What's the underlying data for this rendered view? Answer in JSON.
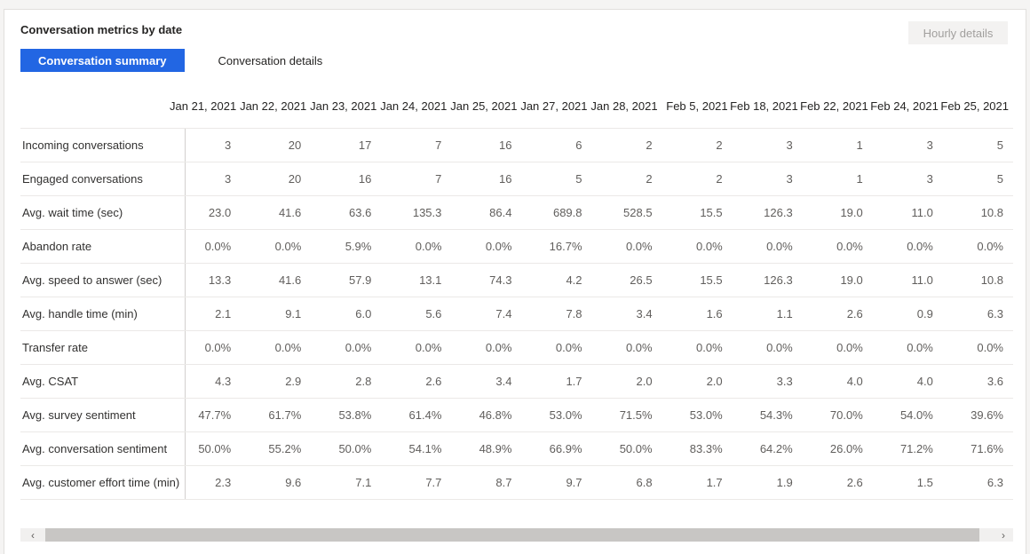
{
  "colors": {
    "accent": "#2266e3",
    "disabled_text": "#a19f9d",
    "thumb": "#c8c6c4"
  },
  "panel": {
    "title": "Conversation metrics by date",
    "hourly_details_label": "Hourly details",
    "tabs": [
      {
        "label": "Conversation summary",
        "selected": true
      },
      {
        "label": "Conversation details",
        "selected": false
      }
    ]
  },
  "table": {
    "columns": [
      "Jan 21, 2021",
      "Jan 22, 2021",
      "Jan 23, 2021",
      "Jan 24, 2021",
      "Jan 25, 2021",
      "Jan 27, 2021",
      "Jan 28, 2021",
      "Feb 5, 2021",
      "Feb 18, 2021",
      "Feb 22, 2021",
      "Feb 24, 2021",
      "Feb 25, 2021"
    ],
    "first_column_clipped": true,
    "rows": [
      {
        "label": "Incoming conversations",
        "values": [
          "3",
          "20",
          "17",
          "7",
          "16",
          "6",
          "2",
          "2",
          "3",
          "1",
          "3",
          "5"
        ]
      },
      {
        "label": "Engaged conversations",
        "values": [
          "3",
          "20",
          "16",
          "7",
          "16",
          "5",
          "2",
          "2",
          "3",
          "1",
          "3",
          "5"
        ]
      },
      {
        "label": "Avg. wait time (sec)",
        "values": [
          "23.0",
          "41.6",
          "63.6",
          "135.3",
          "86.4",
          "689.8",
          "528.5",
          "15.5",
          "126.3",
          "19.0",
          "11.0",
          "10.8"
        ]
      },
      {
        "label": "Abandon rate",
        "values": [
          "0.0%",
          "0.0%",
          "5.9%",
          "0.0%",
          "0.0%",
          "16.7%",
          "0.0%",
          "0.0%",
          "0.0%",
          "0.0%",
          "0.0%",
          "0.0%"
        ]
      },
      {
        "label": "Avg. speed to answer (sec)",
        "values": [
          "13.3",
          "41.6",
          "57.9",
          "13.1",
          "74.3",
          "4.2",
          "26.5",
          "15.5",
          "126.3",
          "19.0",
          "11.0",
          "10.8"
        ]
      },
      {
        "label": "Avg. handle time (min)",
        "values": [
          "2.1",
          "9.1",
          "6.0",
          "5.6",
          "7.4",
          "7.8",
          "3.4",
          "1.6",
          "1.1",
          "2.6",
          "0.9",
          "6.3"
        ]
      },
      {
        "label": "Transfer rate",
        "values": [
          "0.0%",
          "0.0%",
          "0.0%",
          "0.0%",
          "0.0%",
          "0.0%",
          "0.0%",
          "0.0%",
          "0.0%",
          "0.0%",
          "0.0%",
          "0.0%"
        ]
      },
      {
        "label": "Avg. CSAT",
        "values": [
          "4.3",
          "2.9",
          "2.8",
          "2.6",
          "3.4",
          "1.7",
          "2.0",
          "2.0",
          "3.3",
          "4.0",
          "4.0",
          "3.6"
        ]
      },
      {
        "label": "Avg. survey sentiment",
        "values": [
          "47.7%",
          "61.7%",
          "53.8%",
          "61.4%",
          "46.8%",
          "53.0%",
          "71.5%",
          "53.0%",
          "54.3%",
          "70.0%",
          "54.0%",
          "39.6%"
        ]
      },
      {
        "label": "Avg. conversation sentiment",
        "values": [
          "50.0%",
          "55.2%",
          "50.0%",
          "54.1%",
          "48.9%",
          "66.9%",
          "50.0%",
          "83.3%",
          "64.2%",
          "26.0%",
          "71.2%",
          "71.6%"
        ]
      },
      {
        "label": "Avg. customer effort time (min)",
        "values": [
          "2.3",
          "9.6",
          "7.1",
          "7.7",
          "8.7",
          "9.7",
          "6.8",
          "1.7",
          "1.9",
          "2.6",
          "1.5",
          "6.3"
        ]
      }
    ]
  },
  "scrollbar": {
    "left_arrow": "‹",
    "right_arrow": "›"
  }
}
